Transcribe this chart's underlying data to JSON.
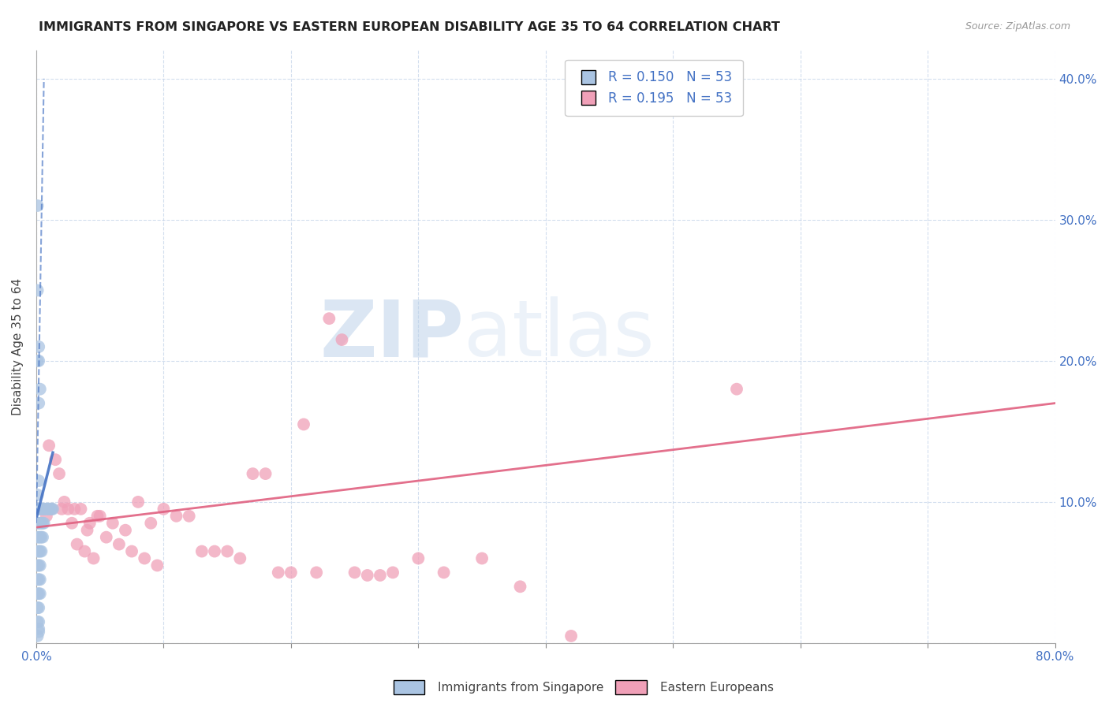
{
  "title": "IMMIGRANTS FROM SINGAPORE VS EASTERN EUROPEAN DISABILITY AGE 35 TO 64 CORRELATION CHART",
  "source": "Source: ZipAtlas.com",
  "ylabel": "Disability Age 35 to 64",
  "xlim": [
    0.0,
    0.8
  ],
  "ylim": [
    0.0,
    0.42
  ],
  "legend_r_blue": "R = 0.150",
  "legend_n_blue": "N = 53",
  "legend_r_pink": "R = 0.195",
  "legend_n_pink": "N = 53",
  "blue_color": "#aac4e2",
  "pink_color": "#f0a0b8",
  "blue_line_color": "#4472c4",
  "pink_line_color": "#e06080",
  "watermark_zip": "ZIP",
  "watermark_atlas": "atlas",
  "singapore_x": [
    0.001,
    0.001,
    0.001,
    0.001,
    0.001,
    0.001,
    0.001,
    0.001,
    0.001,
    0.001,
    0.001,
    0.002,
    0.002,
    0.002,
    0.002,
    0.002,
    0.002,
    0.002,
    0.002,
    0.002,
    0.002,
    0.002,
    0.002,
    0.003,
    0.003,
    0.003,
    0.003,
    0.003,
    0.003,
    0.003,
    0.004,
    0.004,
    0.004,
    0.004,
    0.005,
    0.005,
    0.005,
    0.006,
    0.006,
    0.007,
    0.008,
    0.009,
    0.01,
    0.011,
    0.012,
    0.013,
    0.001,
    0.001,
    0.002,
    0.003,
    0.002,
    0.001,
    0.002
  ],
  "singapore_y": [
    0.095,
    0.085,
    0.075,
    0.065,
    0.055,
    0.045,
    0.035,
    0.025,
    0.015,
    0.005,
    0.105,
    0.115,
    0.095,
    0.085,
    0.075,
    0.065,
    0.055,
    0.045,
    0.035,
    0.025,
    0.015,
    0.01,
    0.008,
    0.095,
    0.085,
    0.075,
    0.065,
    0.055,
    0.045,
    0.035,
    0.095,
    0.085,
    0.075,
    0.065,
    0.095,
    0.085,
    0.075,
    0.095,
    0.085,
    0.095,
    0.095,
    0.095,
    0.095,
    0.095,
    0.095,
    0.095,
    0.25,
    0.31,
    0.2,
    0.18,
    0.17,
    0.2,
    0.21
  ],
  "eastern_x": [
    0.005,
    0.008,
    0.01,
    0.012,
    0.015,
    0.018,
    0.02,
    0.022,
    0.025,
    0.028,
    0.03,
    0.032,
    0.035,
    0.038,
    0.04,
    0.042,
    0.045,
    0.048,
    0.05,
    0.055,
    0.06,
    0.065,
    0.07,
    0.075,
    0.08,
    0.085,
    0.09,
    0.095,
    0.1,
    0.11,
    0.12,
    0.13,
    0.14,
    0.15,
    0.16,
    0.17,
    0.18,
    0.19,
    0.2,
    0.21,
    0.22,
    0.23,
    0.24,
    0.25,
    0.26,
    0.27,
    0.28,
    0.3,
    0.32,
    0.35,
    0.38,
    0.42,
    0.55
  ],
  "eastern_y": [
    0.095,
    0.09,
    0.14,
    0.095,
    0.13,
    0.12,
    0.095,
    0.1,
    0.095,
    0.085,
    0.095,
    0.07,
    0.095,
    0.065,
    0.08,
    0.085,
    0.06,
    0.09,
    0.09,
    0.075,
    0.085,
    0.07,
    0.08,
    0.065,
    0.1,
    0.06,
    0.085,
    0.055,
    0.095,
    0.09,
    0.09,
    0.065,
    0.065,
    0.065,
    0.06,
    0.12,
    0.12,
    0.05,
    0.05,
    0.155,
    0.05,
    0.23,
    0.215,
    0.05,
    0.048,
    0.048,
    0.05,
    0.06,
    0.05,
    0.06,
    0.04,
    0.005,
    0.18
  ],
  "sg_trend_x": [
    0.0,
    0.012
  ],
  "sg_trend_y_start": 0.085,
  "sg_trend_slope": 3.5,
  "ee_trend_x": [
    0.0,
    0.8
  ],
  "ee_trend_y_start": 0.082,
  "ee_trend_y_end": 0.17
}
